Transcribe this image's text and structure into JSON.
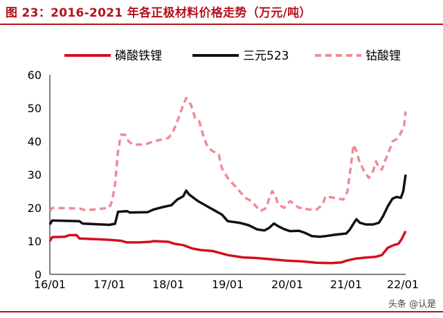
{
  "header": {
    "title": "图 23：2016-2021 年各正极材料价格走势（万元/吨）"
  },
  "watermark": "头条 @认是",
  "chart_data": {
    "type": "line",
    "title": "图 23：2016-2021 年各正极材料价格走势（万元/吨）",
    "xlabel": "",
    "ylabel": "",
    "x_tick_labels": [
      "16/01",
      "17/01",
      "18/01",
      "19/01",
      "20/01",
      "21/01",
      "22/01"
    ],
    "y_ticks": [
      0,
      10,
      20,
      30,
      40,
      50,
      60
    ],
    "ylim": [
      0,
      60
    ],
    "xlim": [
      2016.0,
      2022.0
    ],
    "grid": false,
    "legend_position": "top",
    "series": [
      {
        "name": "磷酸铁锂",
        "color": "#d40f1e",
        "dash": "solid",
        "points": [
          [
            2016.0,
            10
          ],
          [
            2016.04,
            11.2
          ],
          [
            2016.25,
            11.3
          ],
          [
            2016.33,
            11.8
          ],
          [
            2016.45,
            11.8
          ],
          [
            2016.5,
            10.8
          ],
          [
            2016.75,
            10.6
          ],
          [
            2017.0,
            10.4
          ],
          [
            2017.2,
            10.1
          ],
          [
            2017.3,
            9.6
          ],
          [
            2017.5,
            9.6
          ],
          [
            2017.7,
            9.8
          ],
          [
            2017.75,
            10.0
          ],
          [
            2018.0,
            9.8
          ],
          [
            2018.1,
            9.2
          ],
          [
            2018.25,
            8.8
          ],
          [
            2018.4,
            7.8
          ],
          [
            2018.55,
            7.3
          ],
          [
            2018.75,
            7.0
          ],
          [
            2019.0,
            5.8
          ],
          [
            2019.25,
            5.1
          ],
          [
            2019.5,
            4.9
          ],
          [
            2019.75,
            4.5
          ],
          [
            2020.0,
            4.1
          ],
          [
            2020.25,
            3.9
          ],
          [
            2020.5,
            3.5
          ],
          [
            2020.75,
            3.4
          ],
          [
            2020.92,
            3.6
          ],
          [
            2021.0,
            4.1
          ],
          [
            2021.15,
            4.7
          ],
          [
            2021.3,
            5.0
          ],
          [
            2021.5,
            5.3
          ],
          [
            2021.6,
            5.8
          ],
          [
            2021.7,
            8.0
          ],
          [
            2021.8,
            8.8
          ],
          [
            2021.88,
            9.2
          ],
          [
            2021.93,
            10.5
          ],
          [
            2022.0,
            13.0
          ]
        ]
      },
      {
        "name": "三元523",
        "color": "#111111",
        "dash": "solid",
        "points": [
          [
            2016.0,
            15
          ],
          [
            2016.04,
            16.2
          ],
          [
            2016.5,
            16.0
          ],
          [
            2016.55,
            15.3
          ],
          [
            2016.75,
            15.1
          ],
          [
            2017.0,
            14.9
          ],
          [
            2017.1,
            15.2
          ],
          [
            2017.15,
            18.8
          ],
          [
            2017.3,
            19.0
          ],
          [
            2017.35,
            18.6
          ],
          [
            2017.65,
            18.7
          ],
          [
            2017.75,
            19.5
          ],
          [
            2017.9,
            20.2
          ],
          [
            2018.05,
            20.8
          ],
          [
            2018.15,
            22.5
          ],
          [
            2018.25,
            23.5
          ],
          [
            2018.3,
            25.2
          ],
          [
            2018.35,
            24.0
          ],
          [
            2018.5,
            22.0
          ],
          [
            2018.65,
            20.5
          ],
          [
            2018.8,
            19.0
          ],
          [
            2018.9,
            18.0
          ],
          [
            2019.0,
            16.0
          ],
          [
            2019.2,
            15.5
          ],
          [
            2019.35,
            14.8
          ],
          [
            2019.5,
            13.5
          ],
          [
            2019.62,
            13.2
          ],
          [
            2019.7,
            14.0
          ],
          [
            2019.78,
            15.3
          ],
          [
            2019.85,
            14.5
          ],
          [
            2019.95,
            13.6
          ],
          [
            2020.05,
            13.0
          ],
          [
            2020.2,
            13.1
          ],
          [
            2020.3,
            12.5
          ],
          [
            2020.42,
            11.5
          ],
          [
            2020.55,
            11.3
          ],
          [
            2020.65,
            11.5
          ],
          [
            2020.8,
            11.9
          ],
          [
            2021.0,
            12.3
          ],
          [
            2021.06,
            13.5
          ],
          [
            2021.12,
            15.2
          ],
          [
            2021.17,
            16.6
          ],
          [
            2021.23,
            15.5
          ],
          [
            2021.33,
            15.0
          ],
          [
            2021.45,
            15.0
          ],
          [
            2021.55,
            15.5
          ],
          [
            2021.62,
            17.5
          ],
          [
            2021.7,
            20.5
          ],
          [
            2021.78,
            22.8
          ],
          [
            2021.85,
            23.3
          ],
          [
            2021.92,
            23.0
          ],
          [
            2021.96,
            25.0
          ],
          [
            2022.0,
            30.0
          ]
        ]
      },
      {
        "name": "钴酸锂",
        "color": "#f08a97",
        "dash": "dashed",
        "points": [
          [
            2016.0,
            19
          ],
          [
            2016.04,
            20.0
          ],
          [
            2016.5,
            19.8
          ],
          [
            2016.6,
            19.3
          ],
          [
            2016.75,
            19.5
          ],
          [
            2017.0,
            20.0
          ],
          [
            2017.05,
            22.0
          ],
          [
            2017.1,
            27.0
          ],
          [
            2017.15,
            37.0
          ],
          [
            2017.2,
            42.0
          ],
          [
            2017.27,
            42.0
          ],
          [
            2017.33,
            40.0
          ],
          [
            2017.4,
            39.0
          ],
          [
            2017.6,
            39.0
          ],
          [
            2017.75,
            40.0
          ],
          [
            2018.0,
            41.0
          ],
          [
            2018.08,
            43.0
          ],
          [
            2018.15,
            46.0
          ],
          [
            2018.25,
            51.0
          ],
          [
            2018.3,
            53.0
          ],
          [
            2018.38,
            51.0
          ],
          [
            2018.45,
            47.0
          ],
          [
            2018.52,
            46.0
          ],
          [
            2018.6,
            41.0
          ],
          [
            2018.67,
            38.0
          ],
          [
            2018.75,
            37.0
          ],
          [
            2018.85,
            36.0
          ],
          [
            2018.9,
            32.0
          ],
          [
            2019.0,
            29.0
          ],
          [
            2019.1,
            27.0
          ],
          [
            2019.2,
            25.0
          ],
          [
            2019.3,
            23.0
          ],
          [
            2019.4,
            22.0
          ],
          [
            2019.5,
            20.0
          ],
          [
            2019.55,
            19.0
          ],
          [
            2019.65,
            20.0
          ],
          [
            2019.7,
            23.0
          ],
          [
            2019.75,
            25.0
          ],
          [
            2019.8,
            24.0
          ],
          [
            2019.85,
            21.0
          ],
          [
            2019.95,
            20.0
          ],
          [
            2020.05,
            22.0
          ],
          [
            2020.1,
            21.5
          ],
          [
            2020.2,
            20.0
          ],
          [
            2020.3,
            20.0
          ],
          [
            2020.35,
            19.5
          ],
          [
            2020.5,
            19.5
          ],
          [
            2020.6,
            21.0
          ],
          [
            2020.65,
            23.5
          ],
          [
            2020.8,
            23.0
          ],
          [
            2020.95,
            22.5
          ],
          [
            2021.02,
            25.0
          ],
          [
            2021.08,
            33.0
          ],
          [
            2021.12,
            39.0
          ],
          [
            2021.17,
            37.0
          ],
          [
            2021.22,
            34.0
          ],
          [
            2021.3,
            31.0
          ],
          [
            2021.38,
            29.0
          ],
          [
            2021.45,
            31.0
          ],
          [
            2021.5,
            34.0
          ],
          [
            2021.55,
            32.0
          ],
          [
            2021.6,
            31.5
          ],
          [
            2021.65,
            34.0
          ],
          [
            2021.72,
            37.0
          ],
          [
            2021.78,
            40.0
          ],
          [
            2021.88,
            41.0
          ],
          [
            2021.93,
            43.0
          ],
          [
            2021.97,
            44.0
          ],
          [
            2022.0,
            49.0
          ]
        ]
      }
    ]
  }
}
